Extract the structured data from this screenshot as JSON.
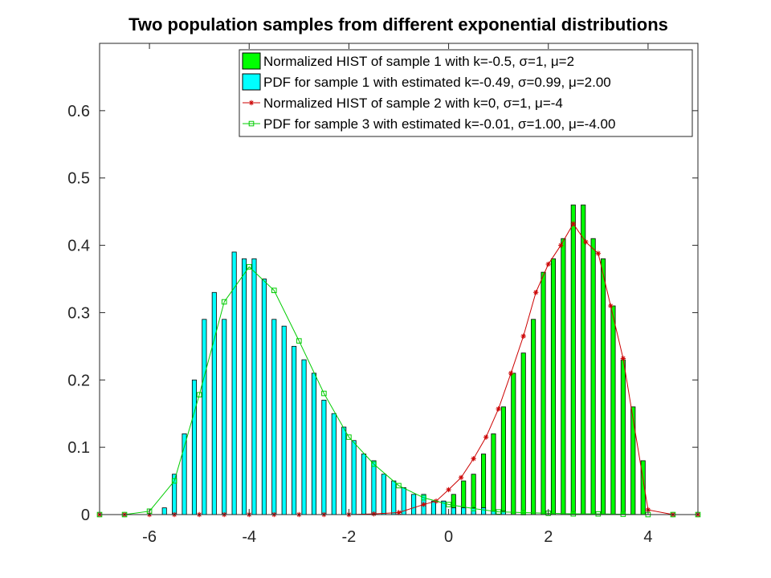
{
  "chart_data": {
    "type": "bar",
    "title": "Two population samples from different exponential distributions",
    "xlabel": "",
    "ylabel": "",
    "xlim": [
      -7,
      5
    ],
    "ylim": [
      0,
      0.7
    ],
    "xticks": [
      -6,
      -4,
      -2,
      0,
      2,
      4
    ],
    "yticks": [
      0,
      0.1,
      0.2,
      0.3,
      0.4,
      0.5,
      0.6
    ],
    "grid": false,
    "legend_position": "top-right",
    "bar_width": 0.085,
    "series": [
      {
        "name": "Normalized HIST of sample 1 with k=-0.5, σ=1, μ=2",
        "kind": "bar",
        "color": "#00ff00",
        "x": [
          -0.3,
          -0.1,
          0.1,
          0.3,
          0.5,
          0.7,
          0.9,
          1.1,
          1.3,
          1.5,
          1.7,
          1.9,
          2.1,
          2.3,
          2.5,
          2.7,
          2.9,
          3.1,
          3.3,
          3.5,
          3.7,
          3.9
        ],
        "values": [
          0.01,
          0.02,
          0.03,
          0.05,
          0.06,
          0.09,
          0.12,
          0.16,
          0.21,
          0.24,
          0.29,
          0.36,
          0.38,
          0.41,
          0.46,
          0.46,
          0.41,
          0.38,
          0.31,
          0.23,
          0.16,
          0.08
        ]
      },
      {
        "name": "PDF for sample 1 with estimated k=-0.49, σ=0.99, μ=2.00",
        "kind": "bar",
        "color": "#00ffff",
        "x": [
          -5.7,
          -5.5,
          -5.3,
          -5.1,
          -4.9,
          -4.7,
          -4.5,
          -4.3,
          -4.1,
          -3.9,
          -3.7,
          -3.5,
          -3.3,
          -3.1,
          -2.9,
          -2.7,
          -2.5,
          -2.3,
          -2.1,
          -1.9,
          -1.7,
          -1.5,
          -1.3,
          -1.1,
          -0.9,
          -0.7,
          -0.5,
          -0.3,
          -0.1,
          0.1,
          0.3,
          0.5,
          0.7,
          0.9,
          1.1
        ],
        "values": [
          0.01,
          0.06,
          0.12,
          0.2,
          0.29,
          0.33,
          0.29,
          0.39,
          0.38,
          0.38,
          0.35,
          0.29,
          0.28,
          0.25,
          0.23,
          0.21,
          0.17,
          0.15,
          0.13,
          0.11,
          0.09,
          0.08,
          0.06,
          0.05,
          0.04,
          0.03,
          0.03,
          0.02,
          0.02,
          0.01,
          0.01,
          0.01,
          0.01,
          0.005,
          0.005
        ]
      },
      {
        "name": "Normalized HIST of sample 2 with k=0, σ=1, μ=-4",
        "kind": "line",
        "marker": "star",
        "color": "#cc0000",
        "x": [
          -7,
          -6.5,
          -6.0,
          -5.5,
          -5.0,
          -4.5,
          -4.0,
          -3.5,
          -3.0,
          -2.5,
          -2.0,
          -1.5,
          -1.0,
          -0.5,
          -0.25,
          0.0,
          0.25,
          0.5,
          0.75,
          1.0,
          1.25,
          1.5,
          1.75,
          2.0,
          2.25,
          2.5,
          2.75,
          3.0,
          3.25,
          3.5,
          4.0,
          4.5,
          5.0
        ],
        "values": [
          0,
          0,
          0,
          0,
          0,
          0,
          0,
          0,
          0,
          0,
          0,
          0.001,
          0.003,
          0.015,
          0.02,
          0.037,
          0.055,
          0.083,
          0.115,
          0.157,
          0.21,
          0.265,
          0.33,
          0.372,
          0.4,
          0.432,
          0.405,
          0.388,
          0.31,
          0.232,
          0.007,
          0,
          0
        ]
      },
      {
        "name": "PDF for sample 3 with estimated k=-0.01, σ=1.00, μ=-4.00",
        "kind": "line",
        "marker": "square",
        "color": "#00cc00",
        "x": [
          -7,
          -6.5,
          -6.0,
          -5.5,
          -5.0,
          -4.5,
          -4.0,
          -3.5,
          -3.0,
          -2.5,
          -2.0,
          -1.5,
          -1.0,
          -0.5,
          0.0,
          0.5,
          1.0,
          1.5,
          2.0,
          2.5,
          3.0,
          3.5,
          4.0,
          4.5,
          5.0
        ],
        "values": [
          0,
          0,
          0.005,
          0.05,
          0.178,
          0.316,
          0.368,
          0.333,
          0.258,
          0.18,
          0.115,
          0.075,
          0.043,
          0.025,
          0.015,
          0.009,
          0.004,
          0.003,
          0.002,
          0.001,
          0.001,
          0.0005,
          0,
          0,
          0
        ]
      }
    ]
  }
}
